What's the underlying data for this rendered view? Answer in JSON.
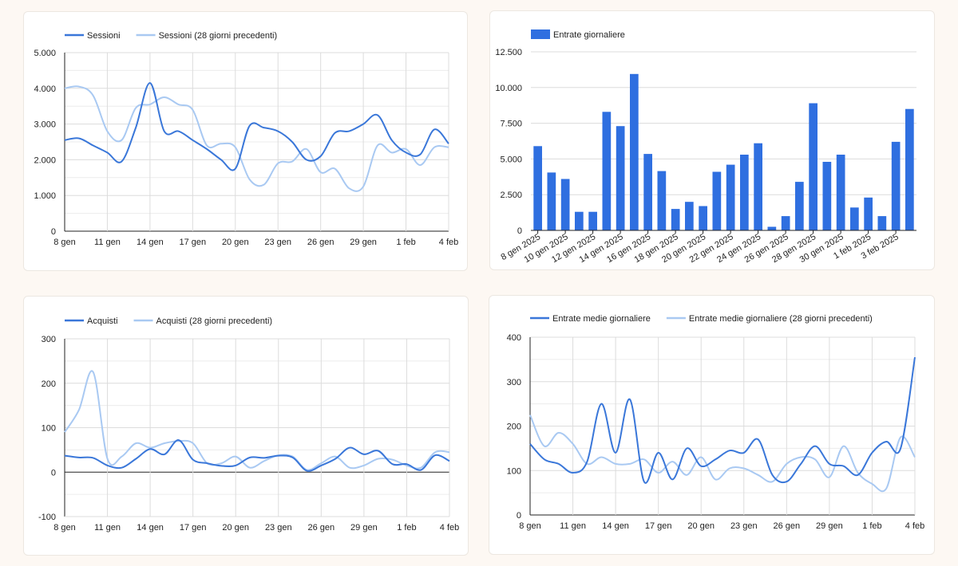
{
  "colors": {
    "primary": "#3a77d9",
    "comparison": "#a9c9f2",
    "bar": "#2f6fe0",
    "grid": "#dcdcdc",
    "axis": "#222222"
  },
  "chart_data": [
    {
      "id": "sessions",
      "type": "line",
      "legend_position": "top-left",
      "grid": true,
      "ylim": [
        0,
        5000
      ],
      "yticks": [
        0,
        1000,
        2000,
        3000,
        4000,
        5000
      ],
      "ytick_labels": [
        "0",
        "1.000",
        "2.000",
        "3.000",
        "4.000",
        "5.000"
      ],
      "xtick_labels": [
        "8 gen",
        "11 gen",
        "14 gen",
        "17 gen",
        "20 gen",
        "23 gen",
        "26 gen",
        "29 gen",
        "1 feb",
        "4 feb"
      ],
      "series": [
        {
          "name": "Sessioni",
          "color": "#3a77d9",
          "values": [
            2550,
            2600,
            2400,
            2200,
            1950,
            2900,
            4150,
            2800,
            2800,
            2550,
            2300,
            2000,
            1750,
            2950,
            2900,
            2800,
            2500,
            2000,
            2100,
            2750,
            2800,
            3000,
            3250,
            2550,
            2200,
            2150,
            2850,
            2450
          ]
        },
        {
          "name": "Sessioni (28 giorni precedenti)",
          "color": "#a9c9f2",
          "values": [
            4000,
            4050,
            3800,
            2800,
            2550,
            3450,
            3550,
            3750,
            3550,
            3400,
            2400,
            2450,
            2350,
            1450,
            1300,
            1900,
            1950,
            2300,
            1650,
            1750,
            1200,
            1250,
            2400,
            2200,
            2300,
            1850,
            2350,
            2350
          ]
        }
      ]
    },
    {
      "id": "revenue",
      "type": "bar",
      "legend_position": "top-left",
      "grid": true,
      "ylim": [
        0,
        12500
      ],
      "yticks": [
        0,
        2500,
        5000,
        7500,
        10000,
        12500
      ],
      "ytick_labels": [
        "0",
        "2.500",
        "5.000",
        "7.500",
        "10.000",
        "12.500"
      ],
      "xtick_labels": [
        "8 gen 2025",
        "10 gen 2025",
        "12 gen 2025",
        "14 gen 2025",
        "16 gen 2025",
        "18 gen 2025",
        "20 gen 2025",
        "22 gen 2025",
        "24 gen 2025",
        "26 gen 2025",
        "28 gen 2025",
        "30 gen 2025",
        "1 feb 2025",
        "3 feb 2025"
      ],
      "series": [
        {
          "name": "Entrate giornaliere",
          "color": "#2f6fe0",
          "values": [
            5900,
            4050,
            3600,
            1300,
            1300,
            8300,
            7300,
            10950,
            5350,
            4150,
            1500,
            2000,
            1700,
            4100,
            4600,
            5300,
            6100,
            250,
            1000,
            3400,
            8900,
            4800,
            5300,
            1600,
            2300,
            1000,
            6200,
            8500
          ]
        }
      ]
    },
    {
      "id": "purchases",
      "type": "line",
      "legend_position": "top-left",
      "grid": true,
      "ylim": [
        -100,
        300
      ],
      "yticks": [
        -100,
        0,
        100,
        200,
        300
      ],
      "ytick_labels": [
        "-100",
        "0",
        "100",
        "200",
        "300"
      ],
      "xtick_labels": [
        "8 gen",
        "11 gen",
        "14 gen",
        "17 gen",
        "20 gen",
        "23 gen",
        "26 gen",
        "29 gen",
        "1 feb",
        "4 feb"
      ],
      "series": [
        {
          "name": "Acquisti",
          "color": "#3a77d9",
          "values": [
            37,
            33,
            32,
            15,
            10,
            30,
            52,
            40,
            72,
            28,
            20,
            14,
            15,
            33,
            32,
            37,
            33,
            3,
            15,
            30,
            55,
            40,
            48,
            18,
            18,
            5,
            38,
            25
          ]
        },
        {
          "name": "Acquisti (28 giorni precedenti)",
          "color": "#a9c9f2",
          "values": [
            90,
            140,
            225,
            30,
            35,
            65,
            55,
            65,
            70,
            65,
            20,
            20,
            35,
            10,
            25,
            38,
            35,
            5,
            20,
            35,
            10,
            15,
            30,
            28,
            15,
            10,
            45,
            45
          ]
        }
      ]
    },
    {
      "id": "avg_revenue",
      "type": "line",
      "legend_position": "top-left",
      "grid": true,
      "ylim": [
        0,
        400
      ],
      "yticks": [
        0,
        100,
        200,
        300,
        400
      ],
      "ytick_labels": [
        "0",
        "100",
        "200",
        "300",
        "400"
      ],
      "xtick_labels": [
        "8 gen",
        "11 gen",
        "14 gen",
        "17 gen",
        "20 gen",
        "23 gen",
        "26 gen",
        "29 gen",
        "1 feb",
        "4 feb"
      ],
      "series": [
        {
          "name": "Entrate medie giornaliere",
          "color": "#3a77d9",
          "values": [
            160,
            125,
            115,
            95,
            120,
            250,
            140,
            260,
            75,
            140,
            80,
            150,
            110,
            125,
            145,
            140,
            170,
            90,
            75,
            115,
            155,
            115,
            110,
            90,
            140,
            165,
            150,
            355
          ]
        },
        {
          "name": "Entrate medie giornaliere (28 giorni precedenti)",
          "color": "#a9c9f2",
          "values": [
            225,
            155,
            185,
            160,
            115,
            130,
            115,
            115,
            125,
            95,
            120,
            90,
            130,
            80,
            105,
            105,
            90,
            75,
            115,
            130,
            125,
            85,
            155,
            95,
            70,
            60,
            175,
            130
          ]
        }
      ]
    }
  ]
}
